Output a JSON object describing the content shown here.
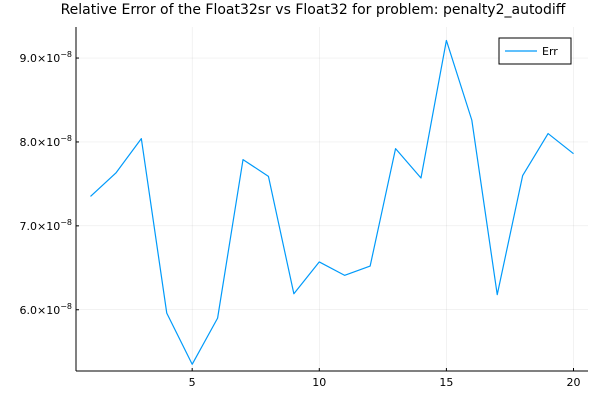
{
  "chart_data": {
    "type": "line",
    "title": "Relative Error of the Float32sr vs Float32 for problem: penalty2_autodiff",
    "xlabel": "",
    "ylabel": "",
    "xlim": [
      0.43,
      20.57
    ],
    "ylim": [
      5.27e-08,
      9.37e-08
    ],
    "grid": true,
    "legend_position": "top-right",
    "x_ticks": [
      {
        "value": 5,
        "label": "5"
      },
      {
        "value": 10,
        "label": "10"
      },
      {
        "value": 15,
        "label": "15"
      },
      {
        "value": 20,
        "label": "20"
      }
    ],
    "y_ticks": [
      {
        "value": 6e-08,
        "mantissa": "6.0",
        "base": "×10",
        "exp": "−8"
      },
      {
        "value": 7e-08,
        "mantissa": "7.0",
        "base": "×10",
        "exp": "−8"
      },
      {
        "value": 8e-08,
        "mantissa": "8.0",
        "base": "×10",
        "exp": "−8"
      },
      {
        "value": 9e-08,
        "mantissa": "9.0",
        "base": "×10",
        "exp": "−8"
      }
    ],
    "series": [
      {
        "name": "Err",
        "color": "#009AFA",
        "x": [
          1,
          2,
          3,
          4,
          5,
          6,
          7,
          8,
          9,
          10,
          11,
          12,
          13,
          14,
          15,
          16,
          17,
          18,
          19,
          20
        ],
        "y": [
          7.35e-08,
          7.63e-08,
          8.04e-08,
          5.96e-08,
          5.35e-08,
          5.9e-08,
          7.79e-08,
          7.59e-08,
          6.19e-08,
          6.57e-08,
          6.41e-08,
          6.52e-08,
          7.92e-08,
          7.57e-08,
          9.21e-08,
          8.26e-08,
          6.18e-08,
          7.6e-08,
          8.1e-08,
          7.86e-08
        ]
      }
    ]
  }
}
